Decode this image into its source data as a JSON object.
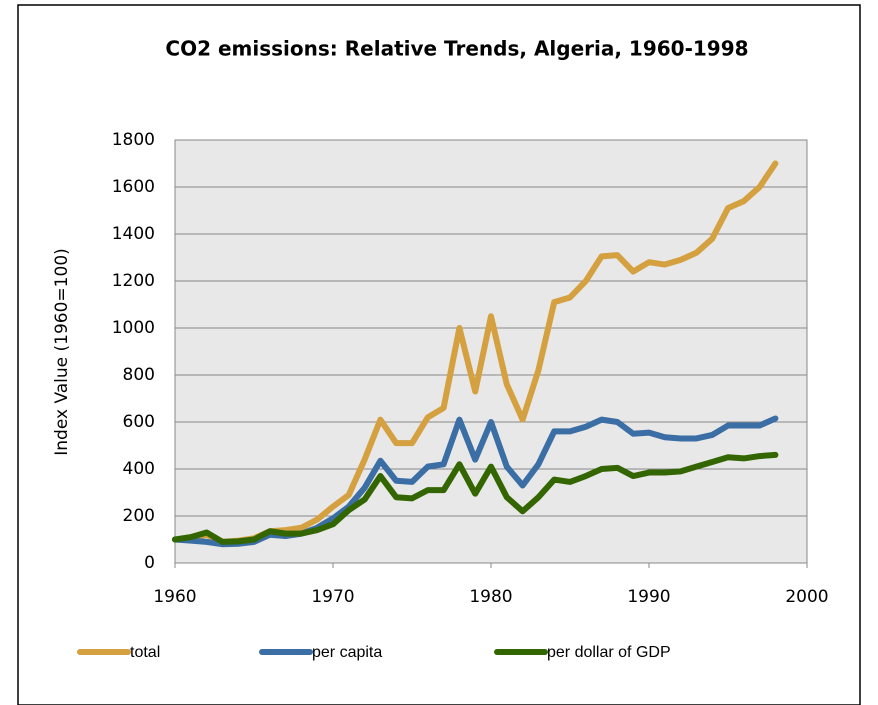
{
  "chart_data": {
    "type": "line",
    "title": "CO2 emissions: Relative Trends, Algeria, 1960-1998",
    "y_label": "Index Value (1960=100)",
    "x": [
      1960,
      1961,
      1962,
      1963,
      1964,
      1965,
      1966,
      1967,
      1968,
      1969,
      1970,
      1971,
      1972,
      1973,
      1974,
      1975,
      1976,
      1977,
      1978,
      1979,
      1980,
      1981,
      1982,
      1983,
      1984,
      1985,
      1986,
      1987,
      1988,
      1989,
      1990,
      1991,
      1992,
      1993,
      1994,
      1995,
      1996,
      1997,
      1998
    ],
    "series": [
      {
        "name": "total",
        "color": "#d4a040",
        "values": [
          100,
          105,
          120,
          90,
          95,
          105,
          135,
          140,
          150,
          185,
          240,
          290,
          440,
          610,
          510,
          510,
          620,
          660,
          1000,
          730,
          1050,
          760,
          610,
          820,
          1110,
          1130,
          1200,
          1305,
          1310,
          1240,
          1280,
          1270,
          1290,
          1320,
          1380,
          1510,
          1540,
          1600,
          1700
        ]
      },
      {
        "name": "per capita",
        "color": "#3a6ea5",
        "values": [
          100,
          95,
          90,
          80,
          82,
          90,
          120,
          115,
          125,
          150,
          190,
          240,
          320,
          435,
          350,
          345,
          410,
          420,
          610,
          440,
          600,
          410,
          330,
          420,
          560,
          560,
          580,
          610,
          600,
          550,
          555,
          535,
          530,
          530,
          545,
          585,
          585,
          585,
          615
        ]
      },
      {
        "name": "per dollar of GDP",
        "color": "#336600",
        "values": [
          100,
          110,
          130,
          90,
          92,
          100,
          135,
          125,
          125,
          140,
          165,
          225,
          270,
          370,
          280,
          275,
          310,
          310,
          420,
          295,
          410,
          280,
          220,
          280,
          355,
          345,
          370,
          400,
          405,
          370,
          385,
          385,
          390,
          410,
          430,
          450,
          445,
          455,
          460
        ]
      }
    ],
    "xlim": [
      1960,
      2000
    ],
    "xticks": [
      1960,
      1970,
      1980,
      1990,
      2000
    ],
    "ylim": [
      0,
      1800
    ],
    "yticks": [
      0,
      200,
      400,
      600,
      800,
      1000,
      1200,
      1400,
      1600,
      1800
    ],
    "grid": true,
    "legend": "bottom"
  }
}
